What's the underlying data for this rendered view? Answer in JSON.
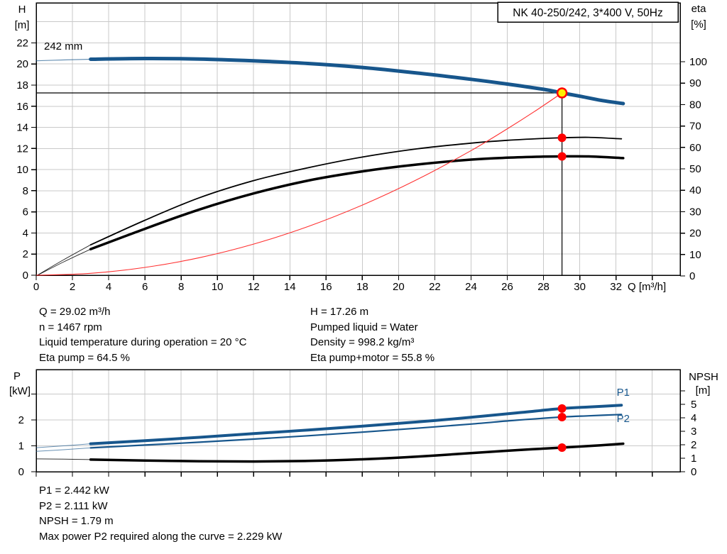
{
  "panel": {
    "title_box": "NK 40-250/242, 3*400 V, 50Hz",
    "impeller_label": "242 mm"
  },
  "colors": {
    "curve_blue": "#17568c",
    "curve_black": "#000000",
    "system_red": "#ff3030",
    "marker_red": "#ff0000",
    "marker_yellow": "#ffee00",
    "grid": "#c9c9c9",
    "frame": "#000000"
  },
  "info_left": [
    "Q = 29.02 m³/h",
    "n = 1467 rpm",
    "Liquid temperature during operation = 20 °C",
    "Eta pump = 64.5 %"
  ],
  "info_right": [
    "H = 17.26 m",
    "Pumped liquid = Water",
    "Density = 998.2 kg/m³",
    "Eta pump+motor = 55.8 %"
  ],
  "results": [
    "P1 = 2.442 kW",
    "P2 = 2.111 kW",
    "NPSH = 1.79 m",
    "Max power P2 required along the curve = 2.229 kW"
  ],
  "chart_data": [
    {
      "id": "upper",
      "type": "line",
      "title": "NK 40-250/242, 3*400 V, 50Hz",
      "impeller_label": "242 mm",
      "x_axis": {
        "label": "Q [m³/h]",
        "min": 0,
        "max": 35.5,
        "tick_step": 2,
        "labeled_tick_max": 32,
        "tick_max": 34,
        "grid": true
      },
      "y_left": {
        "label_line1": "H",
        "label_line2": "[m]",
        "min": 0,
        "tick_step": 2,
        "tick_max": 22,
        "grid_max": 24,
        "grid": true
      },
      "y_right": {
        "label_line1": "eta",
        "label_line2": "[%]",
        "min": 0,
        "tick_step": 10,
        "tick_max": 100,
        "grid": false
      },
      "duty_point": {
        "q": 29.02,
        "h": 17.26,
        "eta_pump": 64.5,
        "eta_pump_motor": 55.8
      },
      "series": [
        {
          "name": "head-242mm-ext",
          "axis": "left",
          "color": "blue",
          "width": 1.2,
          "opacity": 0.65,
          "points": [
            [
              0,
              20.3
            ],
            [
              1.5,
              20.38
            ],
            [
              3,
              20.45
            ]
          ]
        },
        {
          "name": "head-242mm",
          "axis": "left",
          "color": "blue",
          "width": 5,
          "points": [
            [
              3,
              20.45
            ],
            [
              6,
              20.52
            ],
            [
              9,
              20.47
            ],
            [
              12,
              20.3
            ],
            [
              15,
              20.05
            ],
            [
              18,
              19.67
            ],
            [
              21,
              19.15
            ],
            [
              24,
              18.55
            ],
            [
              26,
              18.1
            ],
            [
              28,
              17.6
            ],
            [
              29.02,
              17.26
            ],
            [
              30,
              16.95
            ],
            [
              31.2,
              16.55
            ],
            [
              32.4,
              16.25
            ]
          ]
        },
        {
          "name": "eta-pump-ext",
          "axis": "right",
          "color": "black",
          "width": 0.9,
          "opacity": 0.85,
          "points": [
            [
              0,
              0
            ],
            [
              1.5,
              7.5
            ],
            [
              3,
              14.5
            ]
          ]
        },
        {
          "name": "eta-pump",
          "axis": "right",
          "color": "black",
          "width": 1.8,
          "points": [
            [
              3,
              14.5
            ],
            [
              6,
              26
            ],
            [
              9,
              36.5
            ],
            [
              12,
              44.5
            ],
            [
              15,
              50.5
            ],
            [
              18,
              55.5
            ],
            [
              21,
              59.3
            ],
            [
              24,
              62
            ],
            [
              26,
              63.3
            ],
            [
              28,
              64.2
            ],
            [
              29.02,
              64.5
            ],
            [
              30.5,
              64.7
            ],
            [
              32.3,
              64.0
            ]
          ]
        },
        {
          "name": "eta-pump-motor-ext",
          "axis": "right",
          "color": "black",
          "width": 0.9,
          "opacity": 0.85,
          "points": [
            [
              0,
              0
            ],
            [
              1.5,
              6.5
            ],
            [
              3,
              12.5
            ]
          ]
        },
        {
          "name": "eta-pump-motor",
          "axis": "right",
          "color": "black",
          "width": 3.5,
          "points": [
            [
              3,
              12.5
            ],
            [
              6,
              22
            ],
            [
              9,
              31
            ],
            [
              12,
              38.5
            ],
            [
              15,
              44.5
            ],
            [
              18,
              48.8
            ],
            [
              21,
              52
            ],
            [
              24,
              54.3
            ],
            [
              26,
              55.2
            ],
            [
              28,
              55.7
            ],
            [
              29.02,
              55.8
            ],
            [
              30.5,
              55.8
            ],
            [
              32.4,
              55.0
            ]
          ]
        },
        {
          "name": "system-curve",
          "axis": "left",
          "color": "red",
          "width": 1.1,
          "points": [
            [
              0,
              0
            ],
            [
              3,
              0.18
            ],
            [
              6,
              0.74
            ],
            [
              9,
              1.66
            ],
            [
              12,
              2.95
            ],
            [
              15,
              4.61
            ],
            [
              18,
              6.64
            ],
            [
              21,
              9.04
            ],
            [
              24,
              11.8
            ],
            [
              26,
              13.86
            ],
            [
              27.5,
              15.5
            ],
            [
              29.02,
              17.26
            ]
          ]
        }
      ]
    },
    {
      "id": "lower",
      "type": "line",
      "x_axis": {
        "min": 0,
        "max": 35.5,
        "tick_step": 2,
        "tick_max": 34,
        "grid": true
      },
      "y_left": {
        "label_line1": "P",
        "label_line2": "[kW]",
        "min": 0,
        "tick_step": 1,
        "tick_max": 3,
        "labeled_tick_max": 2,
        "grid": true
      },
      "y_right": {
        "label_line1": "NPSH",
        "label_line2": "[m]",
        "min": 0,
        "tick_step": 1,
        "tick_max": 6,
        "labeled_tick_max": 5,
        "grid": false
      },
      "duty_markers": [
        {
          "name": "p1-duty",
          "q": 29.02,
          "value": 2.442,
          "axis": "left"
        },
        {
          "name": "p2-duty",
          "q": 29.02,
          "value": 2.111,
          "axis": "left"
        },
        {
          "name": "npsh-duty",
          "q": 29.02,
          "value": 1.79,
          "axis": "right"
        }
      ],
      "curve_labels": [
        {
          "text": "P1",
          "q": 32.4,
          "value": 3.07,
          "axis": "left"
        },
        {
          "text": "P2",
          "q": 32.4,
          "value": 2.05,
          "axis": "left"
        }
      ],
      "series": [
        {
          "name": "p1-ext",
          "axis": "left",
          "color": "blue",
          "width": 1,
          "opacity": 0.65,
          "points": [
            [
              0,
              0.93
            ],
            [
              1.5,
              1.0
            ],
            [
              3,
              1.08
            ]
          ]
        },
        {
          "name": "p1",
          "axis": "left",
          "color": "blue",
          "width": 4,
          "points": [
            [
              3,
              1.08
            ],
            [
              6,
              1.2
            ],
            [
              9,
              1.33
            ],
            [
              12,
              1.47
            ],
            [
              15,
              1.61
            ],
            [
              18,
              1.76
            ],
            [
              21,
              1.92
            ],
            [
              24,
              2.1
            ],
            [
              26.5,
              2.27
            ],
            [
              29.02,
              2.442
            ],
            [
              30.5,
              2.5
            ],
            [
              32.3,
              2.57
            ]
          ]
        },
        {
          "name": "p2-ext",
          "axis": "left",
          "color": "blue",
          "width": 1,
          "opacity": 0.65,
          "points": [
            [
              0,
              0.79
            ],
            [
              1.5,
              0.85
            ],
            [
              3,
              0.92
            ]
          ]
        },
        {
          "name": "p2",
          "axis": "left",
          "color": "blue",
          "width": 2.2,
          "points": [
            [
              3,
              0.92
            ],
            [
              6,
              1.03
            ],
            [
              9,
              1.14
            ],
            [
              12,
              1.26
            ],
            [
              15,
              1.39
            ],
            [
              18,
              1.53
            ],
            [
              21,
              1.68
            ],
            [
              24,
              1.84
            ],
            [
              26.5,
              1.99
            ],
            [
              29.02,
              2.111
            ],
            [
              30.5,
              2.16
            ],
            [
              32.3,
              2.21
            ]
          ]
        },
        {
          "name": "npsh-ext",
          "axis": "right",
          "color": "black",
          "width": 1,
          "opacity": 0.8,
          "points": [
            [
              0,
              0.95
            ],
            [
              1.5,
              0.93
            ],
            [
              3,
              0.9
            ]
          ]
        },
        {
          "name": "npsh",
          "axis": "right",
          "color": "black",
          "width": 3.5,
          "points": [
            [
              3,
              0.9
            ],
            [
              6,
              0.83
            ],
            [
              9,
              0.78
            ],
            [
              12,
              0.76
            ],
            [
              15,
              0.8
            ],
            [
              18,
              0.92
            ],
            [
              21,
              1.12
            ],
            [
              24,
              1.38
            ],
            [
              26.5,
              1.6
            ],
            [
              29.02,
              1.79
            ],
            [
              31,
              1.95
            ],
            [
              32.4,
              2.08
            ]
          ]
        }
      ]
    }
  ]
}
